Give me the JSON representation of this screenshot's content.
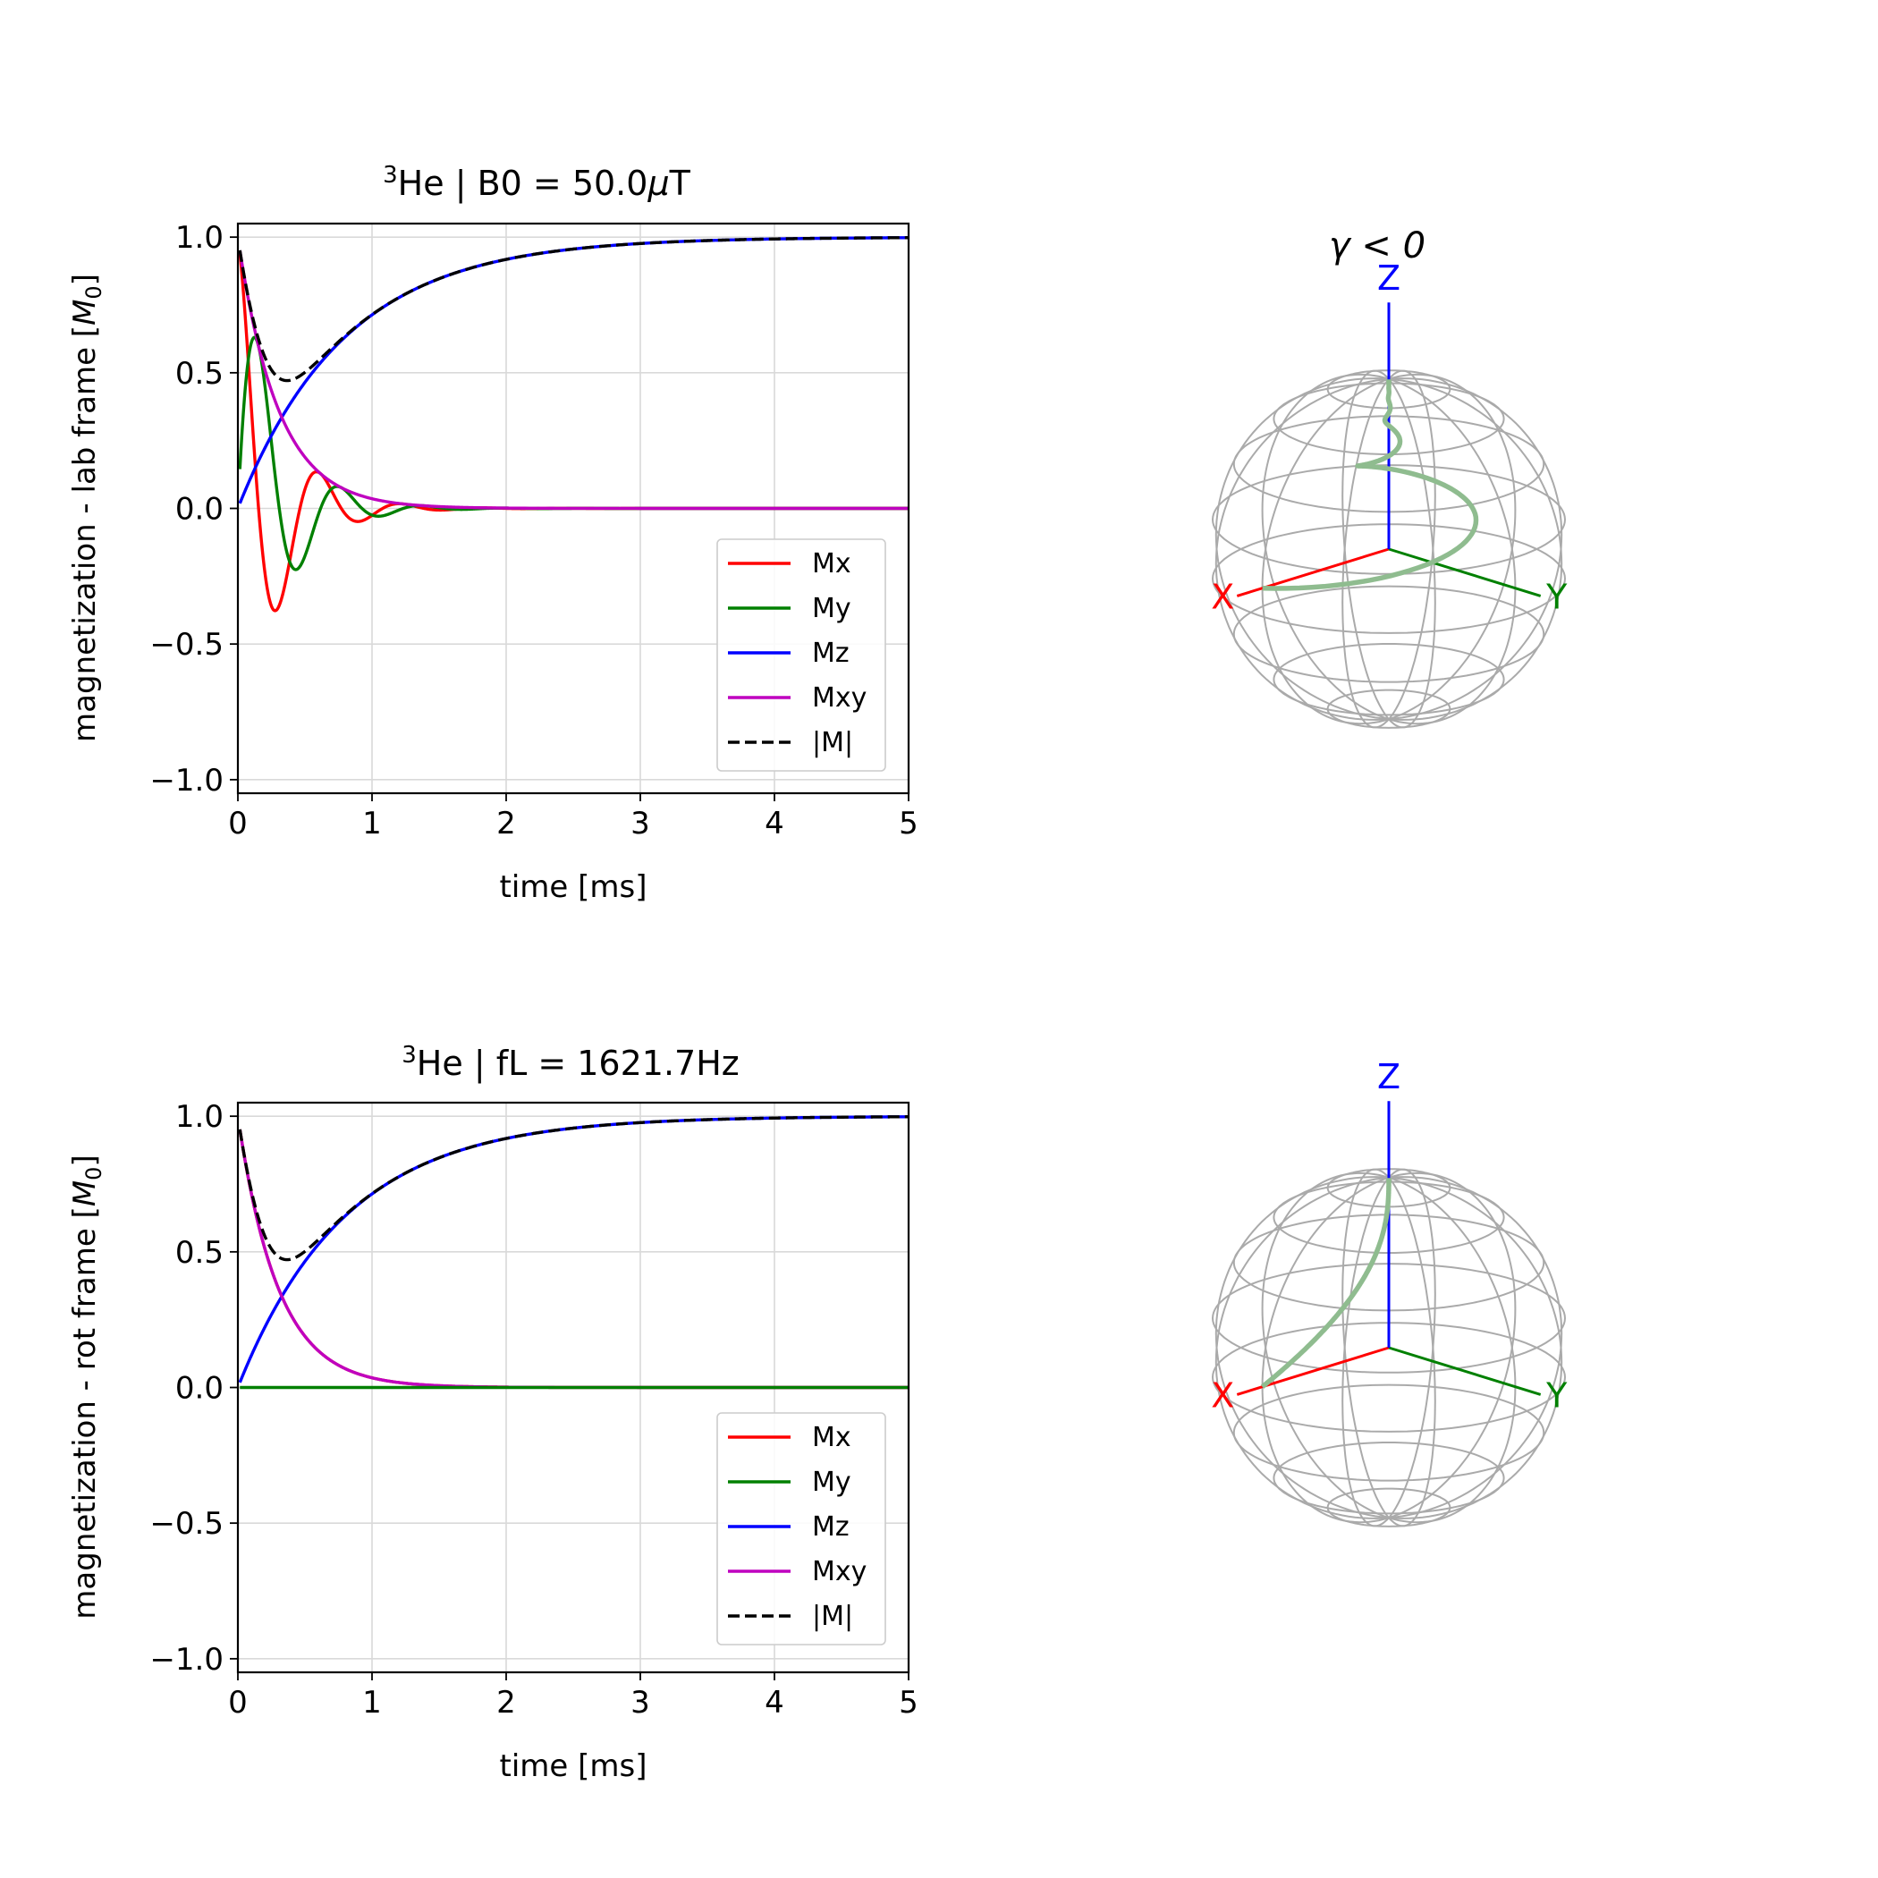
{
  "chart_data": [
    {
      "type": "line",
      "title": {
        "iso": "3",
        "text": "He | B0 = 50.0",
        "mu": "μ",
        "unit": "T"
      },
      "xlabel": "time [ms]",
      "ylabel": {
        "text": "magnetization - lab frame [",
        "sym": "M",
        "sub": "0",
        "close": "]"
      },
      "xlim": [
        0,
        5
      ],
      "ylim": [
        -1.05,
        1.05
      ],
      "xticks": [
        0,
        1,
        2,
        3,
        4,
        5
      ],
      "xtick_labels": [
        "0",
        "1",
        "2",
        "3",
        "4",
        "5"
      ],
      "yticks": [
        -1.0,
        -0.5,
        0.0,
        0.5,
        1.0
      ],
      "ytick_labels": [
        "−1.0",
        "−0.5",
        "0.0",
        "0.5",
        "1.0"
      ],
      "grid": true,
      "legend_position": "lower-right",
      "T1_ms": 0.8,
      "T2_ms": 0.3,
      "f_kHz": 1.6217,
      "series": [
        {
          "name": "Mx",
          "color": "#ff0000",
          "dash": "solid",
          "formula": "exp(-t/T2)*cos(2*pi*f*t)"
        },
        {
          "name": "My",
          "color": "#008000",
          "dash": "solid",
          "formula": "exp(-t/T2)*sin(2*pi*f*t)"
        },
        {
          "name": "Mz",
          "color": "#0000ff",
          "dash": "solid",
          "formula": "1-exp(-t/T1)"
        },
        {
          "name": "Mxy",
          "color": "#bf00bf",
          "dash": "solid",
          "formula": "exp(-t/T2)"
        },
        {
          "name": "|M|",
          "color": "#000000",
          "dash": "dashed",
          "formula": "sqrt(Mxy^2+Mz^2)"
        }
      ],
      "sample_points": {
        "t": [
          0,
          0.1,
          0.2,
          0.3,
          0.45,
          0.55,
          0.75,
          0.9,
          1.05,
          1.5,
          2.0,
          3.0,
          5.0
        ],
        "Mx": [
          0.92,
          0.05,
          -0.35,
          -0.54,
          0.1,
          0.27,
          0.1,
          -0.14,
          0.0,
          -0.03,
          0.02,
          0.0,
          0.0
        ],
        "My": [
          0.0,
          0.74,
          0.5,
          -0.05,
          -0.41,
          0.02,
          0.2,
          0.02,
          -0.11,
          0.03,
          0.0,
          0.0,
          0.0
        ],
        "Mz": [
          0.0,
          0.12,
          0.22,
          0.31,
          0.43,
          0.5,
          0.61,
          0.68,
          0.73,
          0.85,
          0.92,
          0.98,
          1.0
        ],
        "Mxy": [
          0.92,
          0.66,
          0.47,
          0.37,
          0.24,
          0.16,
          0.08,
          0.05,
          0.03,
          0.01,
          0.0,
          0.0,
          0.0
        ],
        "absM": [
          0.92,
          0.68,
          0.58,
          0.55,
          0.53,
          0.53,
          0.61,
          0.68,
          0.73,
          0.85,
          0.92,
          0.98,
          1.0
        ]
      }
    },
    {
      "type": "line",
      "title": {
        "iso": "3",
        "text": "He | fL = 1621.7Hz",
        "mu": "",
        "unit": ""
      },
      "xlabel": "time [ms]",
      "ylabel": {
        "text": "magnetization - rot frame [",
        "sym": "M",
        "sub": "0",
        "close": "]"
      },
      "xlim": [
        0,
        5
      ],
      "ylim": [
        -1.05,
        1.05
      ],
      "xticks": [
        0,
        1,
        2,
        3,
        4,
        5
      ],
      "xtick_labels": [
        "0",
        "1",
        "2",
        "3",
        "4",
        "5"
      ],
      "yticks": [
        -1.0,
        -0.5,
        0.0,
        0.5,
        1.0
      ],
      "ytick_labels": [
        "−1.0",
        "−0.5",
        "0.0",
        "0.5",
        "1.0"
      ],
      "grid": true,
      "legend_position": "lower-right",
      "T1_ms": 0.8,
      "T2_ms": 0.3,
      "series": [
        {
          "name": "Mx",
          "color": "#ff0000",
          "dash": "solid",
          "formula": "exp(-t/T2)"
        },
        {
          "name": "My",
          "color": "#008000",
          "dash": "solid",
          "formula": "0"
        },
        {
          "name": "Mz",
          "color": "#0000ff",
          "dash": "solid",
          "formula": "1-exp(-t/T1)"
        },
        {
          "name": "Mxy",
          "color": "#bf00bf",
          "dash": "solid",
          "formula": "exp(-t/T2)"
        },
        {
          "name": "|M|",
          "color": "#000000",
          "dash": "dashed",
          "formula": "sqrt(Mxy^2+Mz^2)"
        }
      ]
    }
  ],
  "spheres": [
    {
      "title": "γ < 0",
      "axis_labels": {
        "x": "X",
        "y": "Y",
        "z": "Z"
      },
      "axis_colors": {
        "x": "#ff0000",
        "y": "#008000",
        "z": "#0000ff"
      },
      "wire_color": "#aaaaaa",
      "trajectory_color": "#8fbc8f",
      "trajectory": "lab"
    },
    {
      "title": "",
      "axis_labels": {
        "x": "X",
        "y": "Y",
        "z": "Z"
      },
      "axis_colors": {
        "x": "#ff0000",
        "y": "#008000",
        "z": "#0000ff"
      },
      "wire_color": "#aaaaaa",
      "trajectory_color": "#8fbc8f",
      "trajectory": "rot"
    }
  ]
}
